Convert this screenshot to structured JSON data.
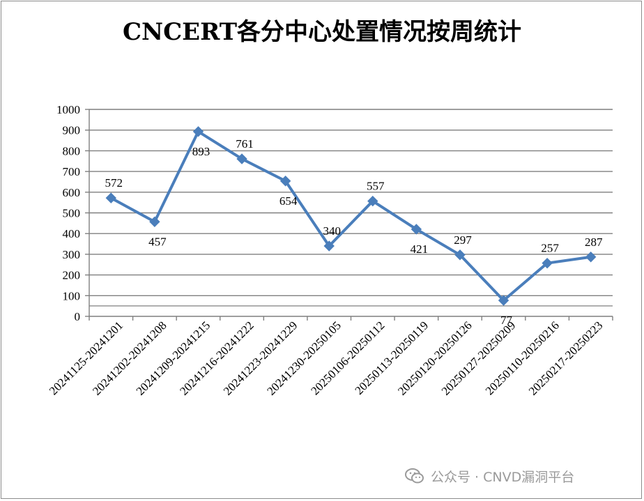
{
  "chart_data": {
    "type": "line",
    "title": "CNCERT各分中心处置情况按周统计",
    "categories": [
      "20241125-20241201",
      "20241202-20241208",
      "20241209-20241215",
      "20241216-20241222",
      "20241223-20241229",
      "20241230-20250105",
      "20250106-20250112",
      "20250113-20250119",
      "20250120-20250126",
      "20250127-20250209",
      "20250110-20250216",
      "20250217-20250223"
    ],
    "values": [
      572,
      457,
      893,
      761,
      654,
      340,
      557,
      421,
      297,
      77,
      257,
      287
    ],
    "ylim": [
      0,
      1000
    ],
    "yticks": [
      0,
      100,
      200,
      300,
      400,
      500,
      600,
      700,
      800,
      900,
      1000
    ],
    "grid": true,
    "legend": "none",
    "line_color": "#4a7ebb",
    "marker": "diamond"
  },
  "watermark": {
    "text": "公众号 · CNVD漏洞平台",
    "icon": "wechat-icon"
  }
}
